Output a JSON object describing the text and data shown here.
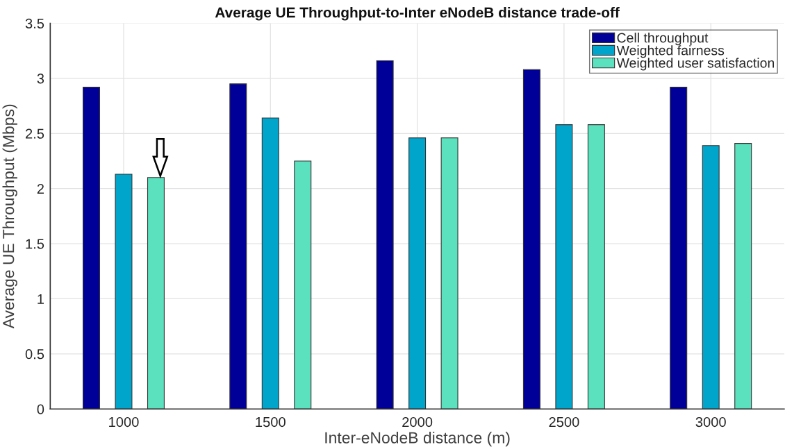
{
  "chart_data": {
    "type": "bar",
    "title": "Average UE Throughput-to-Inter eNodeB distance trade-off",
    "xlabel": "Inter-eNodeB distance (m)",
    "ylabel": "Average UE Throughput (Mbps)",
    "categories": [
      "1000",
      "1500",
      "2000",
      "2500",
      "3000"
    ],
    "series": [
      {
        "name": "Cell throughput",
        "color": "#000099",
        "values": [
          2.92,
          2.95,
          3.16,
          3.08,
          2.92
        ]
      },
      {
        "name": "Weighted fairness",
        "color": "#00a5cc",
        "values": [
          2.13,
          2.64,
          2.46,
          2.58,
          2.39
        ]
      },
      {
        "name": "Weighted user satisfaction",
        "color": "#5ce1be",
        "values": [
          2.1,
          2.25,
          2.46,
          2.58,
          2.41
        ]
      }
    ],
    "ylim": [
      0,
      3.5
    ],
    "yticks": [
      0,
      0.5,
      1,
      1.5,
      2,
      2.5,
      3,
      3.5
    ],
    "grid": true,
    "legend": "top right"
  }
}
